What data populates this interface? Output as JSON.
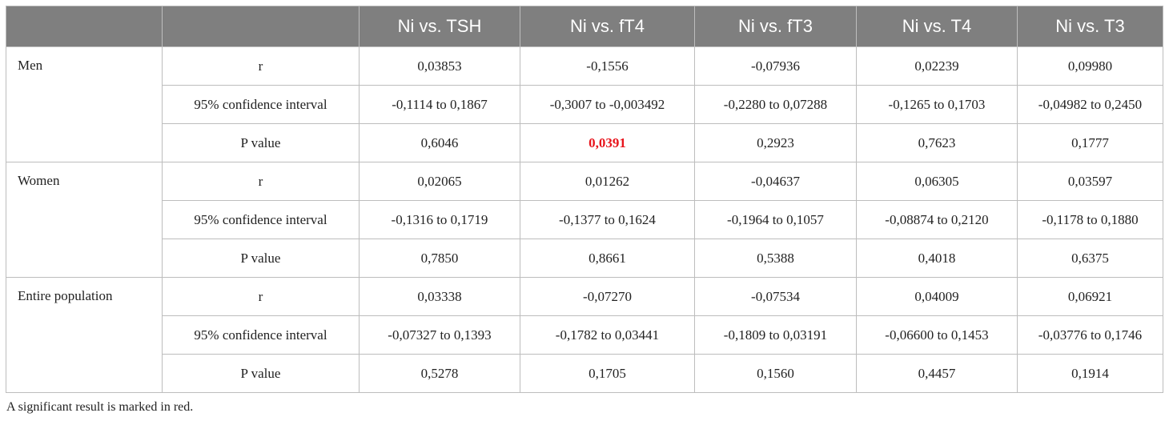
{
  "table": {
    "columns": [
      "",
      "",
      "Ni vs. TSH",
      "Ni vs. fT4",
      "Ni vs. fT3",
      "Ni vs. T4",
      "Ni vs. T3"
    ],
    "groups": [
      {
        "name": "Men",
        "rows": [
          {
            "label": "r",
            "values": [
              "0,03853",
              "-0,1556",
              "-0,07936",
              "0,02239",
              "0,09980"
            ]
          },
          {
            "label": "95% confidence interval",
            "values": [
              "-0,1114 to 0,1867",
              "-0,3007 to -0,003492",
              "-0,2280 to 0,07288",
              "-0,1265 to 0,1703",
              "-0,04982 to 0,2450"
            ]
          },
          {
            "label": "P value",
            "values": [
              "0,6046",
              "0,0391",
              "0,2923",
              "0,7623",
              "0,1777"
            ]
          }
        ]
      },
      {
        "name": "Women",
        "rows": [
          {
            "label": "r",
            "values": [
              "0,02065",
              "0,01262",
              "-0,04637",
              "0,06305",
              "0,03597"
            ]
          },
          {
            "label": "95% confidence interval",
            "values": [
              "-0,1316 to 0,1719",
              "-0,1377 to 0,1624",
              "-0,1964 to 0,1057",
              "-0,08874 to 0,2120",
              "-0,1178 to 0,1880"
            ]
          },
          {
            "label": "P value",
            "values": [
              "0,7850",
              "0,8661",
              "0,5388",
              "0,4018",
              "0,6375"
            ]
          }
        ]
      },
      {
        "name": "Entire population",
        "rows": [
          {
            "label": "r",
            "values": [
              "0,03338",
              "-0,07270",
              "-0,07534",
              "0,04009",
              "0,06921"
            ]
          },
          {
            "label": "95% confidence interval",
            "values": [
              "-0,07327 to 0,1393",
              "-0,1782 to 0,03441",
              "-0,1809 to 0,03191",
              "-0,06600 to 0,1453",
              "-0,03776 to 0,1746"
            ]
          },
          {
            "label": "P value",
            "values": [
              "0,5278",
              "0,1705",
              "0,1560",
              "0,4457",
              "0,1914"
            ]
          }
        ]
      }
    ],
    "highlight": {
      "group": 0,
      "row": 2,
      "col": 1,
      "color": "#e8141c"
    }
  },
  "footnote": "A significant result is marked in red."
}
